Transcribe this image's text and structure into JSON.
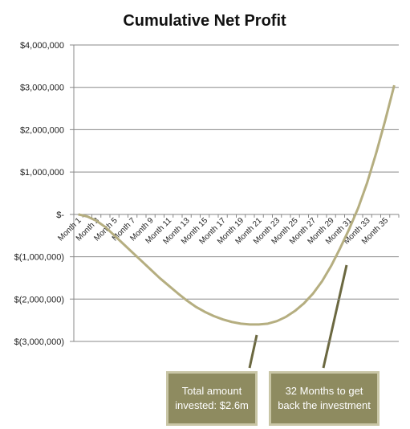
{
  "chart_data": {
    "type": "line",
    "title": "Cumulative Net Profit",
    "categories": [
      "Month 1",
      null,
      "Month 3",
      null,
      "Month 5",
      null,
      "Month 7",
      null,
      "Month 9",
      null,
      "Month 11",
      null,
      "Month 13",
      null,
      "Month 15",
      null,
      "Month 17",
      null,
      "Month 19",
      null,
      "Month 21",
      null,
      "Month 23",
      null,
      "Month 25",
      null,
      "Month 27",
      null,
      "Month 29",
      null,
      "Month 31",
      null,
      "Month 33",
      null,
      "Month 35",
      null
    ],
    "series": [
      {
        "color": "#b5ae80",
        "values": [
          0,
          -50000,
          -150000,
          -300000,
          -500000,
          -700000,
          -900000,
          -1100000,
          -1300000,
          -1500000,
          -1680000,
          -1860000,
          -2030000,
          -2180000,
          -2300000,
          -2400000,
          -2480000,
          -2540000,
          -2580000,
          -2600000,
          -2600000,
          -2580000,
          -2520000,
          -2420000,
          -2280000,
          -2100000,
          -1870000,
          -1580000,
          -1220000,
          -800000,
          -350000,
          150000,
          750000,
          1450000,
          2220000,
          3050000
        ]
      }
    ],
    "ylim": [
      -3000000,
      4000000
    ],
    "yticks": [
      {
        "value": -3000000,
        "label": "$(3,000,000)"
      },
      {
        "value": -2000000,
        "label": "$(2,000,000)"
      },
      {
        "value": -1000000,
        "label": "$(1,000,000)"
      },
      {
        "value": 0,
        "label": "$-"
      },
      {
        "value": 1000000,
        "label": "$1,000,000"
      },
      {
        "value": 2000000,
        "label": "$2,000,000"
      },
      {
        "value": 3000000,
        "label": "$3,000,000"
      },
      {
        "value": 4000000,
        "label": "$4,000,000"
      }
    ],
    "grid": true,
    "annotations": [
      "Total amount invested: $2.6m",
      "32 Months to get back the investment"
    ]
  }
}
